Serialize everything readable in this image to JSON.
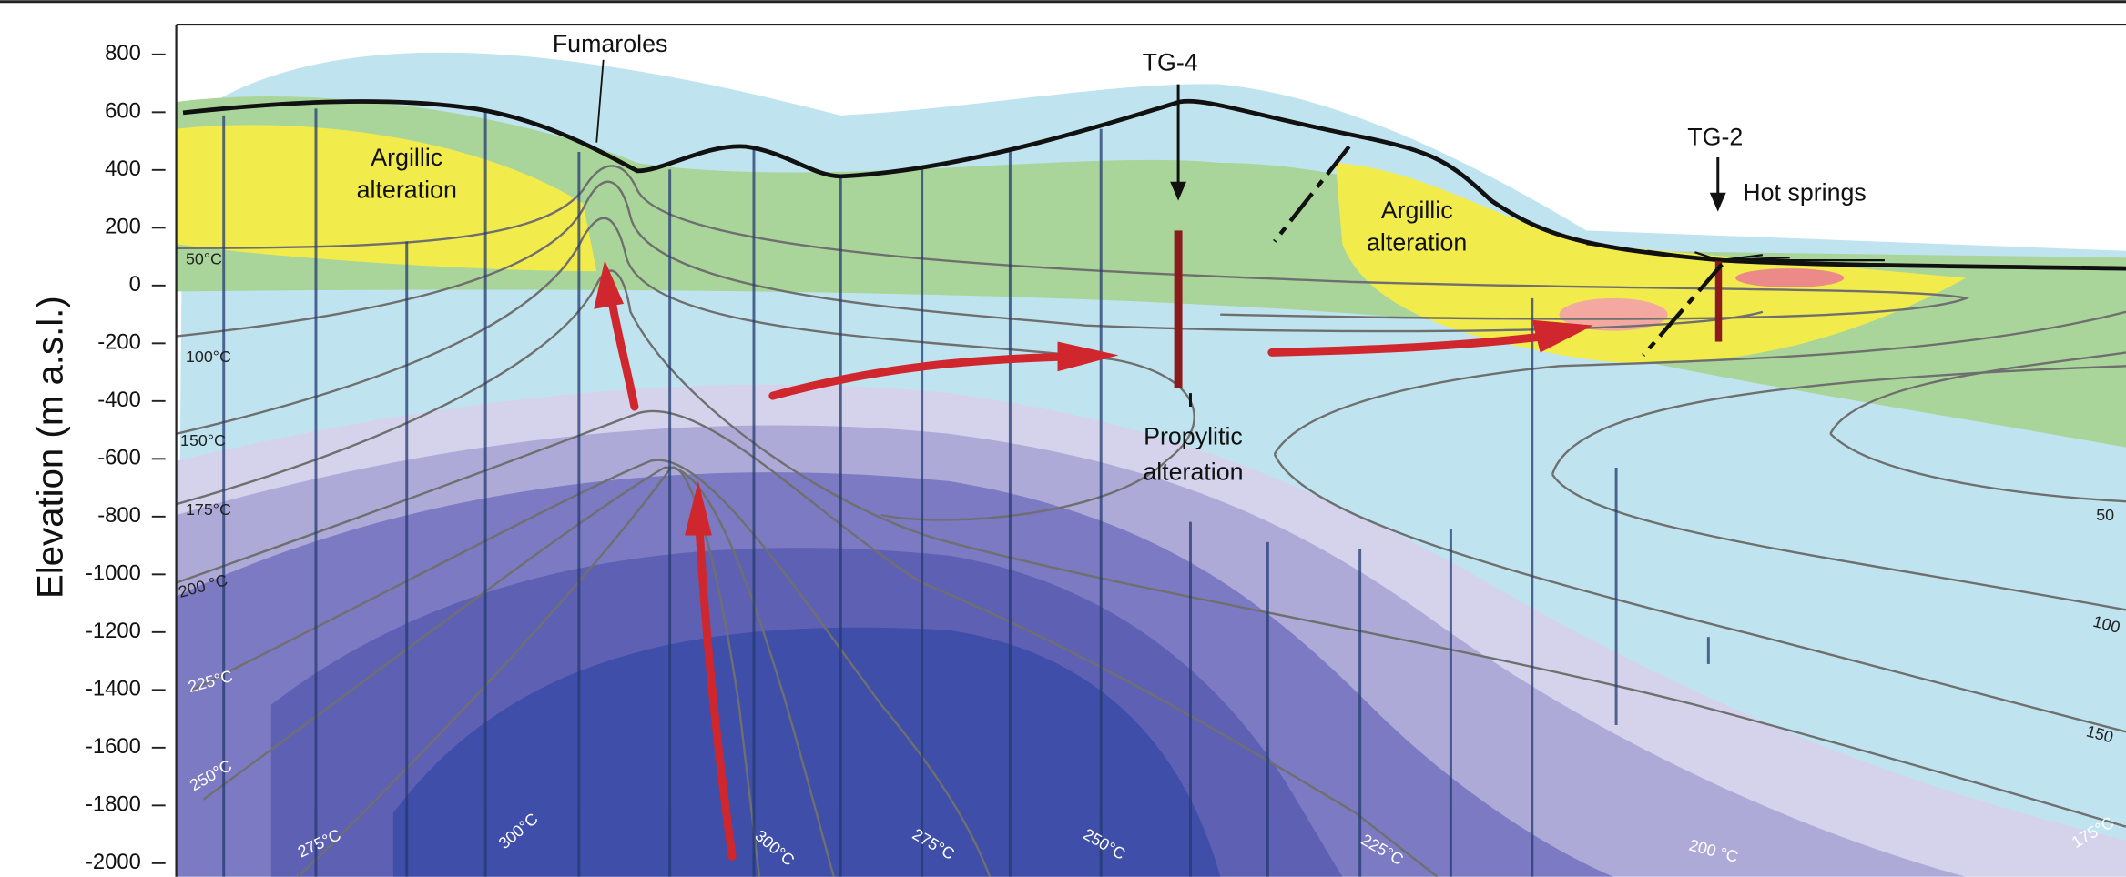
{
  "axis": {
    "label": "Elevation  (m a.s.l.)",
    "ylim": [
      -2000,
      800
    ],
    "yticks": [
      800,
      600,
      400,
      200,
      0,
      -200,
      -400,
      -600,
      -800,
      -1000,
      -1200,
      -1400,
      -1600,
      -1800,
      -2000
    ]
  },
  "labels": {
    "fumaroles": "Fumaroles",
    "tg4": "TG-4",
    "tg2": "TG-2",
    "hot_springs": "Hot springs",
    "argillic_left": [
      "Argillic",
      "alteration"
    ],
    "argillic_right": [
      "Argillic",
      "alteration"
    ],
    "propylitic": [
      "Propylitic",
      "alteration"
    ]
  },
  "isotherm_labels": [
    "50°C",
    "100°C",
    "150°C",
    "175°C",
    "200 °C",
    "225°C",
    "250°C",
    "275°C",
    "300°C",
    "300°C",
    "275°C",
    "250°C",
    "225°C",
    "200 °C",
    "50",
    "100",
    "150",
    "175°C"
  ]
}
